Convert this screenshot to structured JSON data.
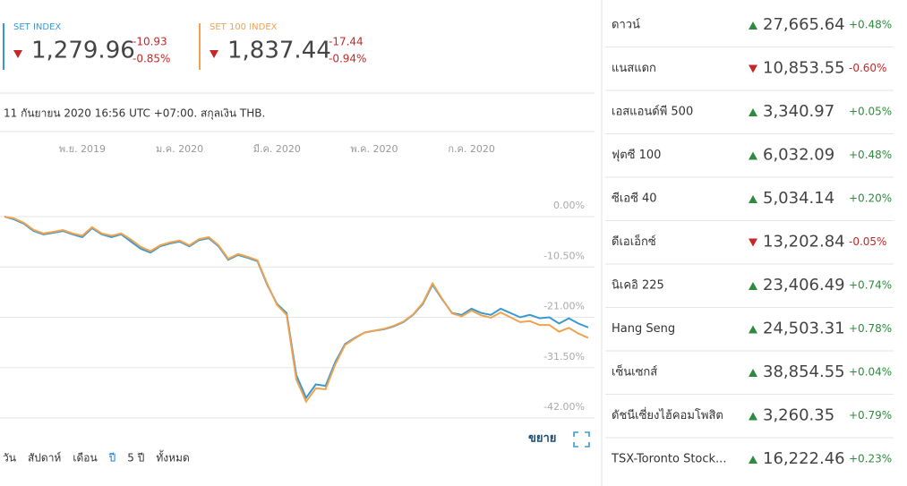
{
  "indices": [
    {
      "name": "SET INDEX",
      "value": "1,279.96",
      "change": "-10.93",
      "change_pct": "-0.85%",
      "color": "#3a9ad0"
    },
    {
      "name": "SET 100 INDEX",
      "value": "1,837.44",
      "change": "-17.44",
      "change_pct": "-0.94%",
      "color": "#f0a24e"
    }
  ],
  "timestamp": "11 กันยายน 2020 16:56 UTC +07:00. สกุลเงิน THB.",
  "chart_data": {
    "type": "line",
    "categories": [
      null,
      null,
      null,
      null,
      null,
      null,
      null,
      null,
      "พ.ย. 2019",
      null,
      null,
      null,
      null,
      null,
      null,
      null,
      null,
      null,
      "ม.ค. 2020",
      null,
      null,
      null,
      null,
      null,
      null,
      null,
      null,
      null,
      "มี.ค. 2020",
      null,
      null,
      null,
      null,
      null,
      null,
      null,
      null,
      null,
      "พ.ค. 2020",
      null,
      null,
      null,
      null,
      null,
      null,
      null,
      null,
      null,
      "ก.ค. 2020",
      null,
      null,
      null,
      null,
      null,
      null,
      null,
      null,
      null,
      null,
      null,
      null
    ],
    "series": [
      {
        "name": "SET INDEX",
        "color": "#3a9ad0",
        "values": [
          0,
          -0.6,
          -1.5,
          -3,
          -3.7,
          -3.4,
          -3,
          -3.7,
          -4.3,
          -2.4,
          -3.7,
          -4.3,
          -3.7,
          -5.2,
          -6.7,
          -7.5,
          -6.2,
          -5.6,
          -5.2,
          -6.2,
          -4.9,
          -4.5,
          -6.2,
          -9,
          -8,
          -8.6,
          -9.3,
          -14.2,
          -18.2,
          -20.1,
          -33.1,
          -37.8,
          -35,
          -35.3,
          -30.3,
          -26.6,
          -25.3,
          -24.2,
          -23.8,
          -23.5,
          -22.9,
          -22,
          -20.5,
          -18.2,
          -14.2,
          -17.3,
          -20.1,
          -20.5,
          -19.2,
          -20.1,
          -20.5,
          -19.2,
          -20.1,
          -21,
          -20.5,
          -21.2,
          -21,
          -22.3,
          -21.2,
          -22.3,
          -23.1
        ]
      },
      {
        "name": "SET 100 INDEX",
        "color": "#f0a24e",
        "values": [
          0,
          -0.4,
          -1.3,
          -2.8,
          -3.5,
          -3.2,
          -2.8,
          -3.5,
          -4,
          -2.2,
          -3.5,
          -4,
          -3.5,
          -4.8,
          -6.3,
          -7.2,
          -6,
          -5.4,
          -5,
          -6,
          -4.7,
          -4.3,
          -6,
          -8.8,
          -7.8,
          -8.4,
          -9.1,
          -14,
          -18.4,
          -20.5,
          -34,
          -38.6,
          -35.8,
          -36,
          -30.8,
          -26.8,
          -25.4,
          -24.2,
          -23.8,
          -23.4,
          -22.8,
          -21.9,
          -20.4,
          -18,
          -13.9,
          -17.2,
          -20.2,
          -20.8,
          -19.6,
          -20.6,
          -21.1,
          -20,
          -21,
          -22,
          -21.8,
          -22.6,
          -22.6,
          -24,
          -23.2,
          -24.4,
          -25.3
        ]
      }
    ],
    "ylim": [
      -42,
      0
    ],
    "yticks": [
      {
        "value": 0,
        "label": "0.00%"
      },
      {
        "value": -10.5,
        "label": "-10.50%"
      },
      {
        "value": -21,
        "label": "-21.00%"
      },
      {
        "value": -31.5,
        "label": "-31.50%"
      },
      {
        "value": -42,
        "label": "-42.00%"
      }
    ],
    "grid": true
  },
  "expand": "ขยาย",
  "range_tabs": [
    "วัน",
    "สัปดาห์",
    "เดือน",
    "ปี",
    "5 ปี",
    "ทั้งหมด"
  ],
  "markets": [
    {
      "name": "ดาวน์",
      "value": "27,665.64",
      "change_pct": "+0.48%"
    },
    {
      "name": "แนสแดก",
      "value": "10,853.55",
      "change_pct": "-0.60%"
    },
    {
      "name": "เอสแอนด์พี 500",
      "value": "3,340.97",
      "change_pct": "+0.05%"
    },
    {
      "name": "ฟุตซี 100",
      "value": "6,032.09",
      "change_pct": "+0.48%"
    },
    {
      "name": "ซีเอซี 40",
      "value": "5,034.14",
      "change_pct": "+0.20%"
    },
    {
      "name": "ดีเอเอ็กซ์",
      "value": "13,202.84",
      "change_pct": "-0.05%"
    },
    {
      "name": "นิเคอิ 225",
      "value": "23,406.49",
      "change_pct": "+0.74%"
    },
    {
      "name": "Hang Seng",
      "value": "24,503.31",
      "change_pct": "+0.78%"
    },
    {
      "name": "เซ็นเซกส์",
      "value": "38,854.55",
      "change_pct": "+0.04%"
    },
    {
      "name": "ดัชนีเซี่ยงไฮ้คอมโพสิต",
      "value": "3,260.35",
      "change_pct": "+0.79%"
    },
    {
      "name": "TSX-Toronto Stock...",
      "value": "16,222.46",
      "change_pct": "+0.23%"
    }
  ]
}
